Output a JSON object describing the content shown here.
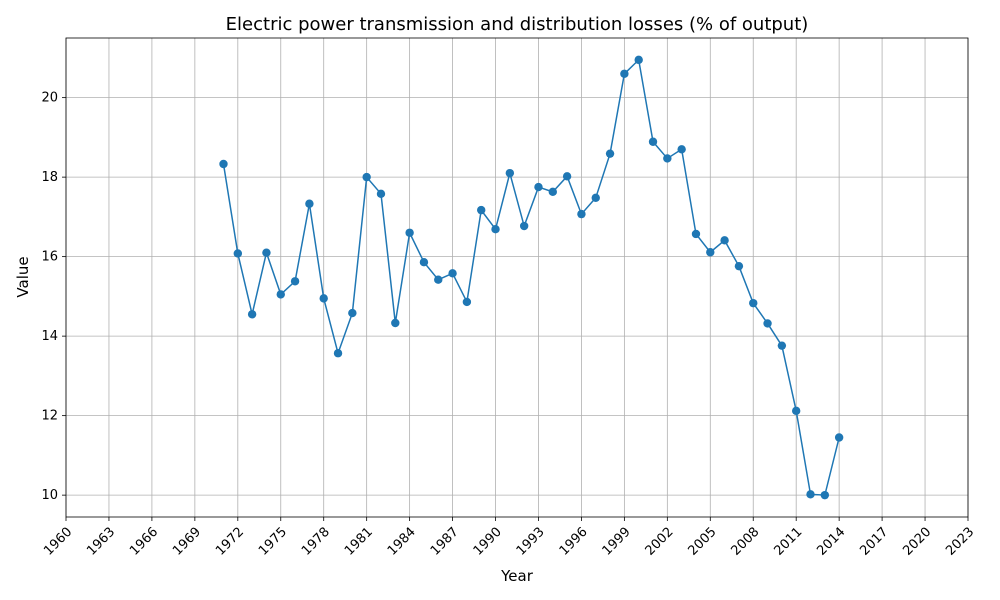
{
  "chart_data": {
    "type": "line",
    "title": "Electric power transmission and distribution losses (% of output)",
    "xlabel": "Year",
    "ylabel": "Value",
    "xlim": [
      1960,
      2023
    ],
    "ylim": [
      9.45,
      21.5
    ],
    "x_ticks": [
      1960,
      1963,
      1966,
      1969,
      1972,
      1975,
      1978,
      1981,
      1984,
      1987,
      1990,
      1993,
      1996,
      1999,
      2002,
      2005,
      2008,
      2011,
      2014,
      2017,
      2020,
      2023
    ],
    "y_ticks": [
      10,
      12,
      14,
      16,
      18,
      20
    ],
    "grid": true,
    "legend": "none",
    "color": "#1f77b4",
    "series": [
      {
        "x": [
          1971,
          1972,
          1973,
          1974,
          1975,
          1976,
          1977,
          1978,
          1979,
          1980,
          1981,
          1982,
          1983,
          1984,
          1985,
          1986,
          1987,
          1988,
          1989,
          1990,
          1991,
          1992,
          1993,
          1994,
          1995,
          1996,
          1997,
          1998,
          1999,
          2000,
          2001,
          2002,
          2003,
          2004,
          2005,
          2006,
          2007,
          2008,
          2009,
          2010,
          2011,
          2012,
          2013,
          2014
        ],
        "values": [
          18.33,
          16.08,
          14.55,
          16.1,
          15.05,
          15.38,
          17.33,
          14.95,
          13.57,
          14.58,
          18.0,
          17.58,
          14.33,
          16.6,
          15.86,
          15.42,
          15.58,
          14.86,
          17.17,
          16.69,
          18.1,
          16.77,
          17.75,
          17.63,
          18.02,
          17.07,
          17.48,
          18.59,
          20.6,
          20.95,
          18.89,
          18.47,
          18.7,
          16.57,
          16.11,
          16.41,
          15.76,
          14.83,
          14.32,
          13.76,
          12.12,
          10.02,
          10.0,
          11.45
        ]
      }
    ]
  }
}
